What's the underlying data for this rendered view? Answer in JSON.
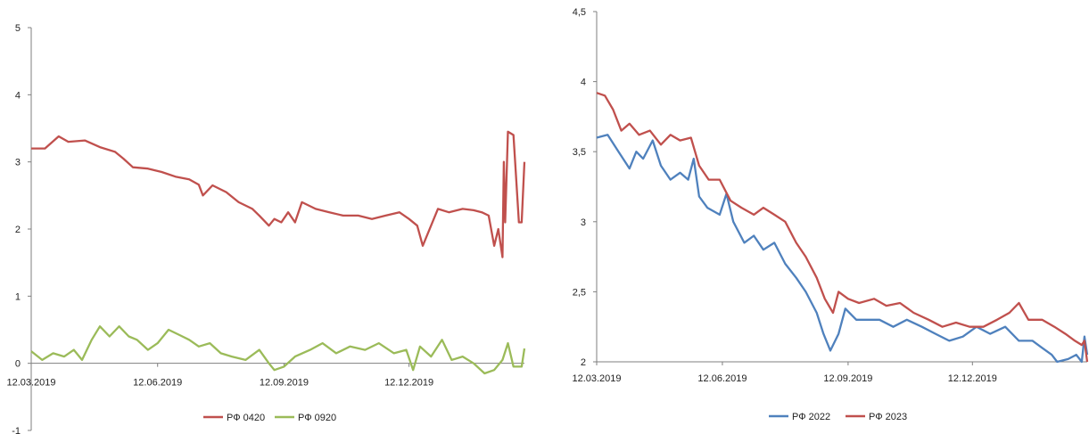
{
  "chart_data": [
    {
      "type": "line",
      "ylim": [
        -1,
        5
      ],
      "y_ticks": [
        "-1",
        "0",
        "1",
        "2",
        "3",
        "4",
        "5"
      ],
      "x_start": "2019-03-12",
      "x_end": "2020-03-05",
      "x_ticks": [
        {
          "date": "2019-03-12",
          "label": "12.03.2019"
        },
        {
          "date": "2019-06-12",
          "label": "12.06.2019"
        },
        {
          "date": "2019-09-12",
          "label": "12.09.2019"
        },
        {
          "date": "2019-12-12",
          "label": "12.12.2019"
        }
      ],
      "legend_position": "bottom",
      "series": [
        {
          "name": "РФ 0420",
          "color": "#c0504d",
          "points": [
            [
              "2019-03-12",
              3.2
            ],
            [
              "2019-03-22",
              3.2
            ],
            [
              "2019-04-01",
              3.38
            ],
            [
              "2019-04-08",
              3.3
            ],
            [
              "2019-04-20",
              3.32
            ],
            [
              "2019-05-01",
              3.22
            ],
            [
              "2019-05-12",
              3.15
            ],
            [
              "2019-05-18",
              3.05
            ],
            [
              "2019-05-25",
              2.92
            ],
            [
              "2019-06-05",
              2.9
            ],
            [
              "2019-06-15",
              2.85
            ],
            [
              "2019-06-25",
              2.78
            ],
            [
              "2019-07-05",
              2.74
            ],
            [
              "2019-07-12",
              2.66
            ],
            [
              "2019-07-15",
              2.5
            ],
            [
              "2019-07-22",
              2.65
            ],
            [
              "2019-08-01",
              2.55
            ],
            [
              "2019-08-10",
              2.4
            ],
            [
              "2019-08-20",
              2.3
            ],
            [
              "2019-08-25",
              2.2
            ],
            [
              "2019-09-01",
              2.05
            ],
            [
              "2019-09-05",
              2.15
            ],
            [
              "2019-09-10",
              2.1
            ],
            [
              "2019-09-15",
              2.25
            ],
            [
              "2019-09-20",
              2.1
            ],
            [
              "2019-09-25",
              2.4
            ],
            [
              "2019-10-05",
              2.3
            ],
            [
              "2019-10-15",
              2.25
            ],
            [
              "2019-10-25",
              2.2
            ],
            [
              "2019-11-05",
              2.2
            ],
            [
              "2019-11-15",
              2.15
            ],
            [
              "2019-11-25",
              2.2
            ],
            [
              "2019-12-05",
              2.25
            ],
            [
              "2019-12-12",
              2.15
            ],
            [
              "2019-12-18",
              2.05
            ],
            [
              "2019-12-22",
              1.75
            ],
            [
              "2019-12-28",
              2.05
            ],
            [
              "2020-01-02",
              2.3
            ],
            [
              "2020-01-10",
              2.25
            ],
            [
              "2020-01-20",
              2.3
            ],
            [
              "2020-01-28",
              2.28
            ],
            [
              "2020-02-03",
              2.25
            ],
            [
              "2020-02-08",
              2.2
            ],
            [
              "2020-02-12",
              1.75
            ],
            [
              "2020-02-15",
              2.0
            ],
            [
              "2020-02-18",
              1.58
            ],
            [
              "2020-02-19",
              3.0
            ],
            [
              "2020-02-20",
              2.1
            ],
            [
              "2020-02-22",
              3.45
            ],
            [
              "2020-02-26",
              3.4
            ],
            [
              "2020-03-01",
              2.1
            ],
            [
              "2020-03-03",
              2.1
            ],
            [
              "2020-03-05",
              3.0
            ]
          ]
        },
        {
          "name": "РФ 0920",
          "color": "#9bbb59",
          "points": [
            [
              "2019-03-12",
              0.18
            ],
            [
              "2019-03-20",
              0.05
            ],
            [
              "2019-03-28",
              0.15
            ],
            [
              "2019-04-05",
              0.1
            ],
            [
              "2019-04-12",
              0.2
            ],
            [
              "2019-04-18",
              0.05
            ],
            [
              "2019-04-25",
              0.35
            ],
            [
              "2019-05-01",
              0.55
            ],
            [
              "2019-05-08",
              0.4
            ],
            [
              "2019-05-15",
              0.55
            ],
            [
              "2019-05-22",
              0.4
            ],
            [
              "2019-05-28",
              0.35
            ],
            [
              "2019-06-05",
              0.2
            ],
            [
              "2019-06-12",
              0.3
            ],
            [
              "2019-06-20",
              0.5
            ],
            [
              "2019-06-28",
              0.42
            ],
            [
              "2019-07-05",
              0.35
            ],
            [
              "2019-07-12",
              0.25
            ],
            [
              "2019-07-20",
              0.3
            ],
            [
              "2019-07-28",
              0.15
            ],
            [
              "2019-08-05",
              0.1
            ],
            [
              "2019-08-15",
              0.05
            ],
            [
              "2019-08-25",
              0.2
            ],
            [
              "2019-09-01",
              0.0
            ],
            [
              "2019-09-05",
              -0.1
            ],
            [
              "2019-09-12",
              -0.05
            ],
            [
              "2019-09-20",
              0.1
            ],
            [
              "2019-10-01",
              0.2
            ],
            [
              "2019-10-10",
              0.3
            ],
            [
              "2019-10-20",
              0.15
            ],
            [
              "2019-10-30",
              0.25
            ],
            [
              "2019-11-10",
              0.2
            ],
            [
              "2019-11-20",
              0.3
            ],
            [
              "2019-12-01",
              0.15
            ],
            [
              "2019-12-10",
              0.2
            ],
            [
              "2019-12-15",
              -0.1
            ],
            [
              "2019-12-20",
              0.25
            ],
            [
              "2019-12-28",
              0.1
            ],
            [
              "2020-01-05",
              0.35
            ],
            [
              "2020-01-12",
              0.05
            ],
            [
              "2020-01-20",
              0.1
            ],
            [
              "2020-01-28",
              0.0
            ],
            [
              "2020-02-05",
              -0.15
            ],
            [
              "2020-02-12",
              -0.1
            ],
            [
              "2020-02-18",
              0.05
            ],
            [
              "2020-02-22",
              0.3
            ],
            [
              "2020-02-26",
              -0.05
            ],
            [
              "2020-03-03",
              -0.05
            ],
            [
              "2020-03-05",
              0.22
            ]
          ]
        }
      ]
    },
    {
      "type": "line",
      "ylim": [
        2,
        4.5
      ],
      "y_ticks": [
        "2",
        "2,5",
        "3",
        "3,5",
        "4",
        "4,5"
      ],
      "x_start": "2019-03-12",
      "x_end": "2020-03-05",
      "x_ticks": [
        {
          "date": "2019-03-12",
          "label": "12.03.2019"
        },
        {
          "date": "2019-06-12",
          "label": "12.06.2019"
        },
        {
          "date": "2019-09-12",
          "label": "12.09.2019"
        },
        {
          "date": "2019-12-12",
          "label": "12.12.2019"
        }
      ],
      "legend_position": "bottom",
      "series": [
        {
          "name": "РФ 2022",
          "color": "#4f81bd",
          "points": [
            [
              "2019-03-12",
              3.6
            ],
            [
              "2019-03-20",
              3.62
            ],
            [
              "2019-03-28",
              3.5
            ],
            [
              "2019-04-05",
              3.38
            ],
            [
              "2019-04-10",
              3.5
            ],
            [
              "2019-04-15",
              3.45
            ],
            [
              "2019-04-22",
              3.58
            ],
            [
              "2019-04-28",
              3.4
            ],
            [
              "2019-05-05",
              3.3
            ],
            [
              "2019-05-12",
              3.35
            ],
            [
              "2019-05-18",
              3.3
            ],
            [
              "2019-05-22",
              3.45
            ],
            [
              "2019-05-26",
              3.18
            ],
            [
              "2019-06-01",
              3.1
            ],
            [
              "2019-06-10",
              3.05
            ],
            [
              "2019-06-15",
              3.2
            ],
            [
              "2019-06-20",
              3.0
            ],
            [
              "2019-06-28",
              2.85
            ],
            [
              "2019-07-05",
              2.9
            ],
            [
              "2019-07-12",
              2.8
            ],
            [
              "2019-07-20",
              2.85
            ],
            [
              "2019-07-28",
              2.7
            ],
            [
              "2019-08-05",
              2.6
            ],
            [
              "2019-08-12",
              2.5
            ],
            [
              "2019-08-20",
              2.35
            ],
            [
              "2019-08-25",
              2.2
            ],
            [
              "2019-08-30",
              2.08
            ],
            [
              "2019-09-05",
              2.2
            ],
            [
              "2019-09-10",
              2.38
            ],
            [
              "2019-09-18",
              2.3
            ],
            [
              "2019-09-25",
              2.3
            ],
            [
              "2019-10-05",
              2.3
            ],
            [
              "2019-10-15",
              2.25
            ],
            [
              "2019-10-25",
              2.3
            ],
            [
              "2019-11-05",
              2.25
            ],
            [
              "2019-11-15",
              2.2
            ],
            [
              "2019-11-25",
              2.15
            ],
            [
              "2019-12-05",
              2.18
            ],
            [
              "2019-12-15",
              2.25
            ],
            [
              "2019-12-25",
              2.2
            ],
            [
              "2020-01-05",
              2.25
            ],
            [
              "2020-01-15",
              2.15
            ],
            [
              "2020-01-25",
              2.15
            ],
            [
              "2020-02-01",
              2.1
            ],
            [
              "2020-02-08",
              2.05
            ],
            [
              "2020-02-12",
              2.0
            ],
            [
              "2020-02-20",
              2.02
            ],
            [
              "2020-02-26",
              2.05
            ],
            [
              "2020-03-01",
              2.0
            ],
            [
              "2020-03-03",
              2.18
            ],
            [
              "2020-03-05",
              2.05
            ]
          ]
        },
        {
          "name": "РФ 2023",
          "color": "#c0504d",
          "points": [
            [
              "2019-03-12",
              3.92
            ],
            [
              "2019-03-18",
              3.9
            ],
            [
              "2019-03-24",
              3.8
            ],
            [
              "2019-03-30",
              3.65
            ],
            [
              "2019-04-05",
              3.7
            ],
            [
              "2019-04-12",
              3.62
            ],
            [
              "2019-04-20",
              3.65
            ],
            [
              "2019-04-28",
              3.55
            ],
            [
              "2019-05-05",
              3.62
            ],
            [
              "2019-05-12",
              3.58
            ],
            [
              "2019-05-20",
              3.6
            ],
            [
              "2019-05-26",
              3.4
            ],
            [
              "2019-06-02",
              3.3
            ],
            [
              "2019-06-10",
              3.3
            ],
            [
              "2019-06-18",
              3.15
            ],
            [
              "2019-06-26",
              3.1
            ],
            [
              "2019-07-05",
              3.05
            ],
            [
              "2019-07-12",
              3.1
            ],
            [
              "2019-07-20",
              3.05
            ],
            [
              "2019-07-28",
              3.0
            ],
            [
              "2019-08-05",
              2.85
            ],
            [
              "2019-08-12",
              2.75
            ],
            [
              "2019-08-20",
              2.6
            ],
            [
              "2019-08-26",
              2.45
            ],
            [
              "2019-09-01",
              2.35
            ],
            [
              "2019-09-05",
              2.5
            ],
            [
              "2019-09-12",
              2.45
            ],
            [
              "2019-09-20",
              2.42
            ],
            [
              "2019-10-01",
              2.45
            ],
            [
              "2019-10-10",
              2.4
            ],
            [
              "2019-10-20",
              2.42
            ],
            [
              "2019-10-30",
              2.35
            ],
            [
              "2019-11-10",
              2.3
            ],
            [
              "2019-11-20",
              2.25
            ],
            [
              "2019-11-30",
              2.28
            ],
            [
              "2019-12-10",
              2.25
            ],
            [
              "2019-12-20",
              2.25
            ],
            [
              "2019-12-30",
              2.3
            ],
            [
              "2020-01-08",
              2.35
            ],
            [
              "2020-01-15",
              2.42
            ],
            [
              "2020-01-22",
              2.3
            ],
            [
              "2020-02-01",
              2.3
            ],
            [
              "2020-02-10",
              2.25
            ],
            [
              "2020-02-18",
              2.2
            ],
            [
              "2020-02-25",
              2.15
            ],
            [
              "2020-03-01",
              2.12
            ],
            [
              "2020-03-03",
              2.15
            ],
            [
              "2020-03-05",
              2.0
            ]
          ]
        }
      ]
    }
  ]
}
